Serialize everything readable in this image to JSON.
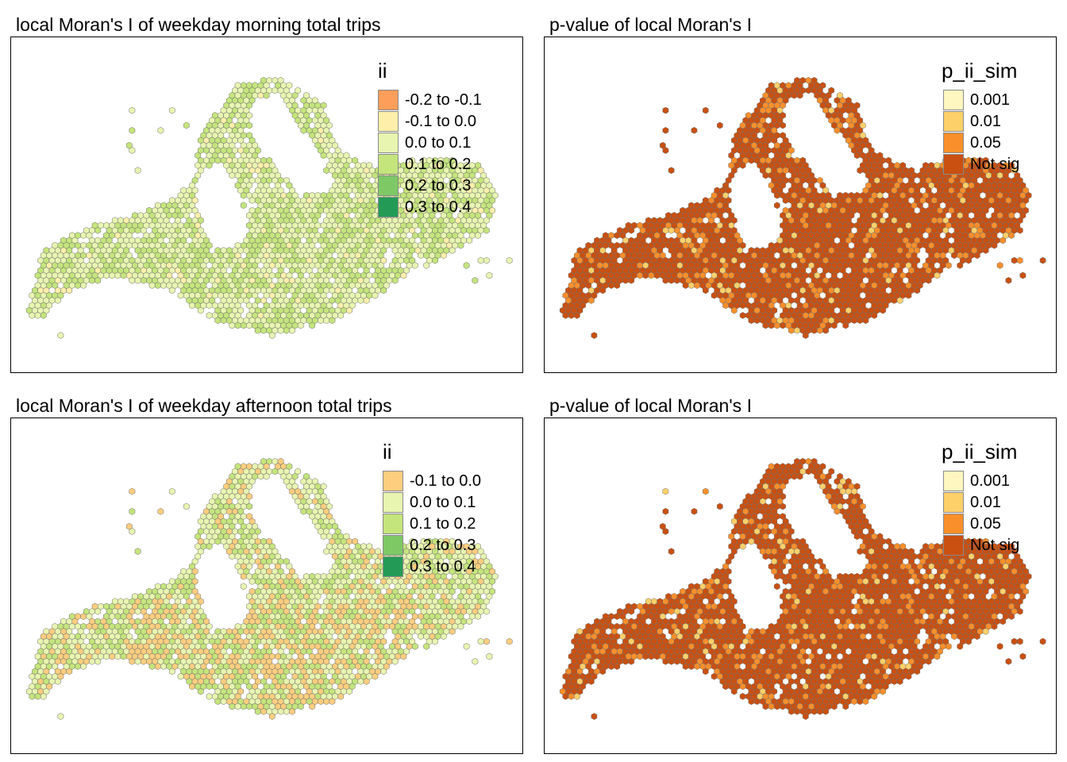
{
  "panels": [
    {
      "id": "p1",
      "title": "local Moran's I of weekday morning total trips",
      "legend_title": "ii",
      "legend_items": [
        {
          "label": "-0.2 to -0.1",
          "color": "#fd9e5b"
        },
        {
          "label": "-0.1 to 0.0",
          "color": "#feefaa"
        },
        {
          "label": "0.0 to 0.1",
          "color": "#e8f5b0"
        },
        {
          "label": "0.1 to 0.2",
          "color": "#c4e57c"
        },
        {
          "label": "0.2 to 0.3",
          "color": "#7ec866"
        },
        {
          "label": "0.3 to 0.4",
          "color": "#239b56"
        }
      ]
    },
    {
      "id": "p2",
      "title": "p-value of local Moran's I",
      "legend_title": "p_ii_sim",
      "legend_items": [
        {
          "label": "0.001",
          "color": "#fff7bf"
        },
        {
          "label": "0.01",
          "color": "#fed06a"
        },
        {
          "label": "0.05",
          "color": "#f98f2a"
        },
        {
          "label": "Not sig",
          "color": "#c95011"
        }
      ]
    },
    {
      "id": "p3",
      "title": "local Moran's I of weekday afternoon total trips",
      "legend_title": "ii",
      "legend_items": [
        {
          "label": "-0.1 to 0.0",
          "color": "#fdce7e"
        },
        {
          "label": "0.0 to 0.1",
          "color": "#e8f5b0"
        },
        {
          "label": "0.1 to 0.2",
          "color": "#c4e57c"
        },
        {
          "label": "0.2 to 0.3",
          "color": "#7ec866"
        },
        {
          "label": "0.3 to 0.4",
          "color": "#239b56"
        }
      ]
    },
    {
      "id": "p4",
      "title": "p-value of local Moran's I",
      "legend_title": "p_ii_sim",
      "legend_items": [
        {
          "label": "0.001",
          "color": "#fff7bf"
        },
        {
          "label": "0.01",
          "color": "#fed06a"
        },
        {
          "label": "0.05",
          "color": "#f98f2a"
        },
        {
          "label": "Not sig",
          "color": "#c95011"
        }
      ]
    }
  ]
}
